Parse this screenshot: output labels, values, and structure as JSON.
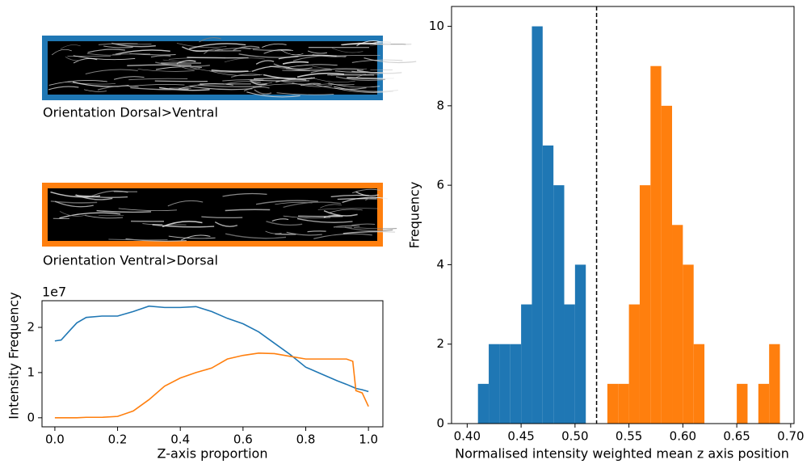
{
  "images": [
    {
      "caption": "Orientation Dorsal>Ventral"
    },
    {
      "caption": "Orientation Ventral>Dorsal"
    }
  ],
  "chart_data": [
    {
      "type": "line",
      "y_label": "Intensity Frequency",
      "x_label": "Z-axis proportion",
      "y_offset_label": "1e7",
      "x": [
        0,
        0.02,
        0.05,
        0.07,
        0.1,
        0.15,
        0.2,
        0.25,
        0.3,
        0.35,
        0.4,
        0.45,
        0.5,
        0.55,
        0.6,
        0.65,
        0.7,
        0.75,
        0.8,
        0.85,
        0.9,
        0.93,
        0.95,
        0.96,
        0.98,
        1.0
      ],
      "series": [
        {
          "color": "#1f77b4",
          "values": [
            17000000,
            17200000,
            19500000,
            21000000,
            22200000,
            22500000,
            22500000,
            23500000,
            24700000,
            24400000,
            24400000,
            24600000,
            23500000,
            22000000,
            20800000,
            19000000,
            16500000,
            14000000,
            11200000,
            9700000,
            8200000,
            7400000,
            6800000,
            6500000,
            6200000,
            5800000
          ]
        },
        {
          "color": "#ff7f0e",
          "values": [
            0,
            0,
            0,
            0,
            100000,
            100000,
            300000,
            1500000,
            4000000,
            7000000,
            8800000,
            10000000,
            11000000,
            13000000,
            13800000,
            14300000,
            14200000,
            13600000,
            13000000,
            13000000,
            13000000,
            13000000,
            12500000,
            6000000,
            5500000,
            2500000
          ]
        }
      ],
      "xlim": [
        -0.041,
        1.046
      ],
      "ylim": [
        -2000000,
        25900000
      ],
      "xticks": [
        {
          "value": 0,
          "label": "0.0"
        },
        0.2,
        0.4,
        0.6,
        0.8,
        {
          "value": 1,
          "label": "1.0"
        }
      ],
      "yticks": [
        {
          "value": 0,
          "label": "0"
        },
        {
          "value": 10000000,
          "label": "1"
        },
        {
          "value": 20000000,
          "label": "2"
        }
      ]
    },
    {
      "type": "histogram",
      "y_label": "Frequency",
      "x_label": "Normalised intensity weighted mean z axis position",
      "series": [
        {
          "color": "#1f77b4",
          "bins": [
            0.41,
            0.42,
            0.43,
            0.44,
            0.45,
            0.46,
            0.47,
            0.48,
            0.49,
            0.5,
            0.51
          ],
          "values": [
            1,
            2,
            2,
            2,
            3,
            10,
            7,
            6,
            3,
            4
          ]
        },
        {
          "color": "#ff7f0e",
          "bins": [
            0.53,
            0.54,
            0.55,
            0.56,
            0.57,
            0.58,
            0.59,
            0.6,
            0.61,
            0.62,
            0.63,
            0.64,
            0.65,
            0.66,
            0.67,
            0.68,
            0.69
          ],
          "values": [
            1,
            1,
            3,
            6,
            9,
            8,
            5,
            4,
            2,
            0,
            0,
            0,
            1,
            0,
            1,
            2
          ]
        }
      ],
      "vline": 0.52,
      "xlim": [
        0.3855,
        0.7031
      ],
      "ylim": [
        0,
        10.5
      ],
      "xticks": [
        {
          "value": 0.4,
          "label": "0.40"
        },
        0.45,
        {
          "value": 0.5,
          "label": "0.50"
        },
        0.55,
        {
          "value": 0.6,
          "label": "0.60"
        },
        0.65,
        {
          "value": 0.7,
          "label": "0.70"
        }
      ],
      "yticks": [
        0,
        2,
        4,
        6,
        8,
        10
      ]
    }
  ]
}
